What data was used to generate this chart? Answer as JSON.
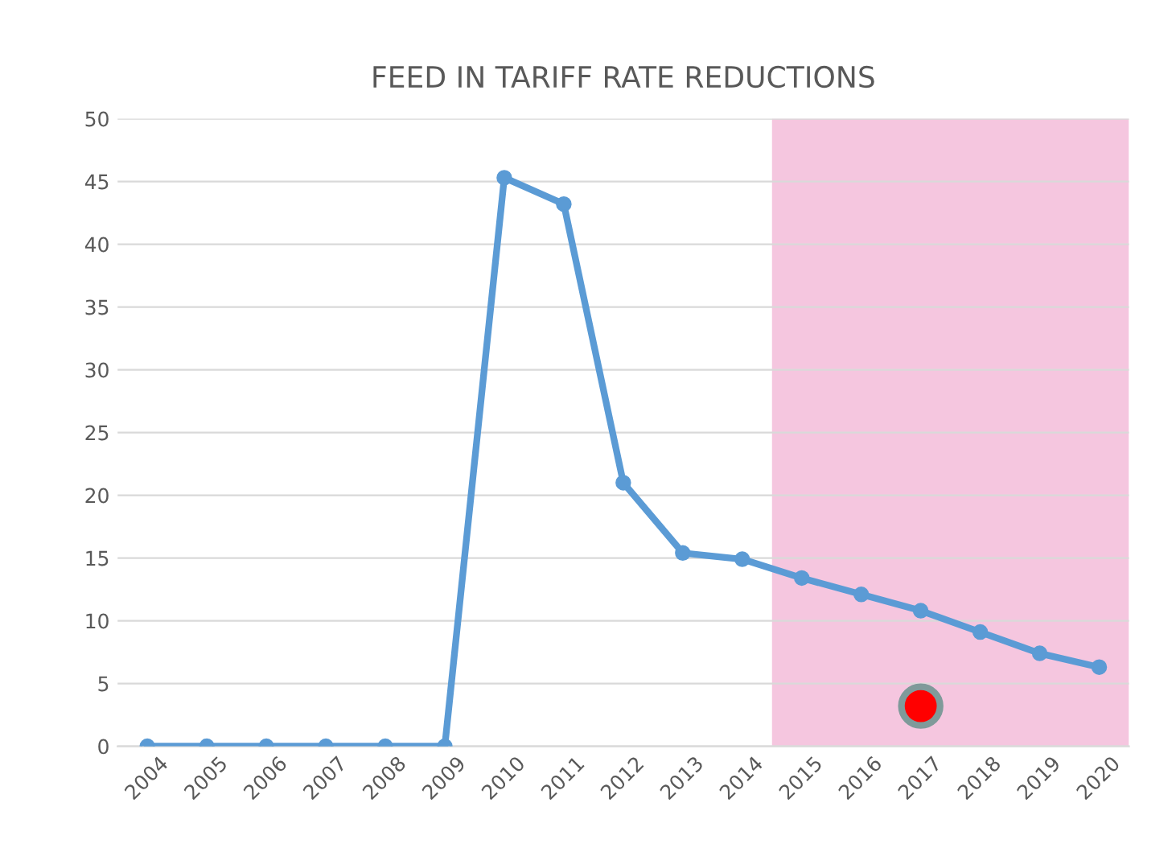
{
  "chart_data": {
    "type": "line",
    "title": "FEED IN TARIFF RATE REDUCTIONS",
    "categories": [
      "2004",
      "2005",
      "2006",
      "2007",
      "2008",
      "2009",
      "2010",
      "2011",
      "2012",
      "2013",
      "2014",
      "2015",
      "2016",
      "2017",
      "2018",
      "2019",
      "2020"
    ],
    "series": [
      {
        "color": "#5b9bd5",
        "values": [
          0,
          0,
          0,
          0,
          0,
          0,
          45.3,
          43.2,
          21,
          15.4,
          14.9,
          13.4,
          12.1,
          10.8,
          9.1,
          7.4,
          6.3
        ]
      },
      {
        "type": "scatter",
        "color": "#ff0000",
        "values": [
          null,
          null,
          null,
          null,
          null,
          null,
          null,
          null,
          null,
          null,
          null,
          null,
          null,
          3.2,
          null,
          null,
          null
        ]
      }
    ],
    "bands": [
      {
        "axis": "x",
        "from": "2015",
        "to": "2020",
        "color": "#f5c6df"
      }
    ],
    "ylim": [
      0,
      50
    ],
    "yticks": [
      0,
      5,
      10,
      15,
      20,
      25,
      30,
      35,
      40,
      45,
      50
    ],
    "grid": "y",
    "marker": "circle",
    "line_style": "solid"
  }
}
